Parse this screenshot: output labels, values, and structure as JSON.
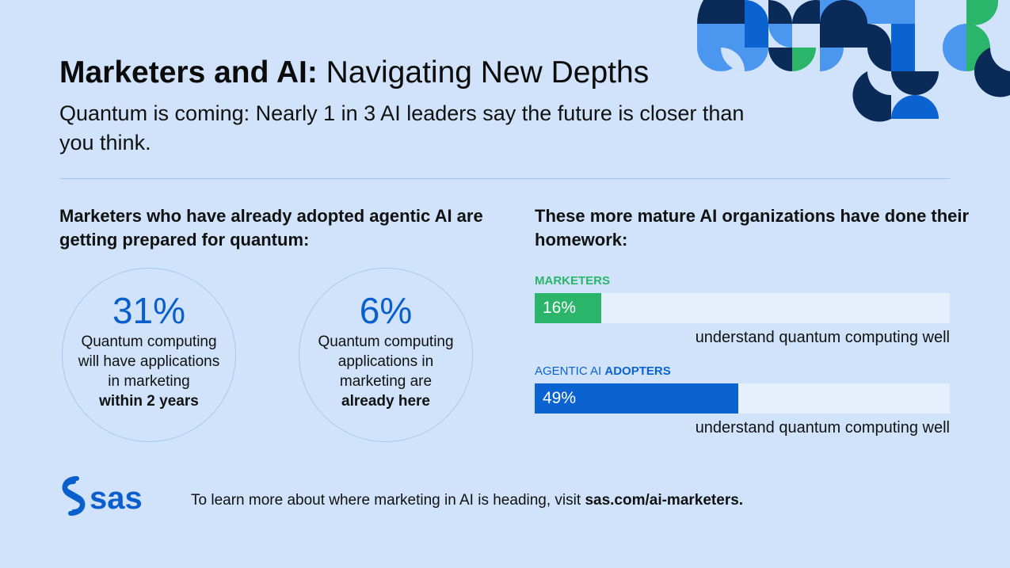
{
  "header": {
    "title_bold": "Marketers and AI:",
    "title_rest": " Navigating New Depths",
    "subtitle": "Quantum is coming: Nearly 1 in 3 AI leaders say the future is closer than you think."
  },
  "left": {
    "heading": "Marketers who have already adopted agentic AI are getting prepared for quantum:",
    "stats": [
      {
        "value": "31%",
        "text": "Quantum computing will have applications in marketing",
        "bold": "within 2 years"
      },
      {
        "value": "6%",
        "text": "Quantum computing applications in marketing are",
        "bold": "already here"
      }
    ]
  },
  "right": {
    "heading": "These more mature AI organizations have done their homework:"
  },
  "chart_data": {
    "type": "bar",
    "orientation": "horizontal",
    "categories": [
      "MARKETERS",
      "AGENTIC AI ADOPTERS"
    ],
    "category_parts": [
      {
        "regular": "",
        "bold": "MARKETERS"
      },
      {
        "regular": "AGENTIC AI ",
        "bold": "ADOPTERS"
      }
    ],
    "values": [
      16,
      49
    ],
    "labels": [
      "16%",
      "49%"
    ],
    "caption": "understand quantum computing well",
    "xlim": [
      0,
      100
    ],
    "colors": [
      "#2bb56a",
      "#0b63d1"
    ],
    "track_color": "#e6f0fd"
  },
  "footer": {
    "logo": "sas",
    "text": "To learn more about where marketing in AI is heading, visit ",
    "link": "sas.com/ai-marketers."
  },
  "colors": {
    "background": "#d0e3fa",
    "accent_blue": "#0b5fcc",
    "navy": "#0a2a57",
    "light_blue": "#4b97f0",
    "green": "#2bb56a"
  }
}
